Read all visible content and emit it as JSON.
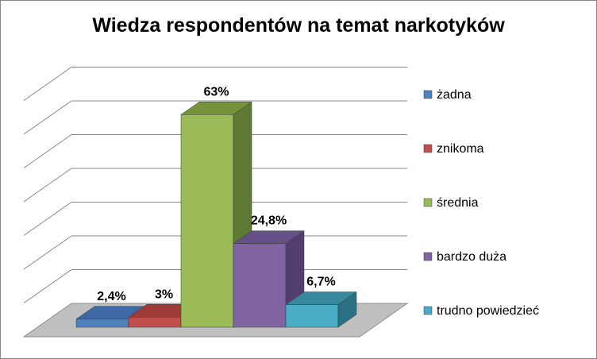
{
  "chart_data": {
    "type": "bar",
    "title": "Wiedza respondentów na temat narkotyków",
    "categories": [
      "żadna",
      "znikoma",
      "średnia",
      "bardzo duża",
      "trudno powiedzieć"
    ],
    "values": [
      2.4,
      3,
      63,
      24.8,
      6.7
    ],
    "value_labels": [
      "2,4%",
      "3%",
      "63%",
      "24,8%",
      "6,7%"
    ],
    "ylim": [
      0,
      70
    ],
    "grid": true,
    "legend_position": "right",
    "style": "3d-column",
    "colors": [
      {
        "front": "#4F81BD",
        "side": "#2C4F7C",
        "top": "#3D6AA4"
      },
      {
        "front": "#C0504D",
        "side": "#7E2E2C",
        "top": "#9E3B38"
      },
      {
        "front": "#9BBB59",
        "side": "#5E7A32",
        "top": "#76933C"
      },
      {
        "front": "#8064A2",
        "side": "#523E6E",
        "top": "#664E86"
      },
      {
        "front": "#4BACC6",
        "side": "#2A7186",
        "top": "#37879D"
      }
    ]
  }
}
